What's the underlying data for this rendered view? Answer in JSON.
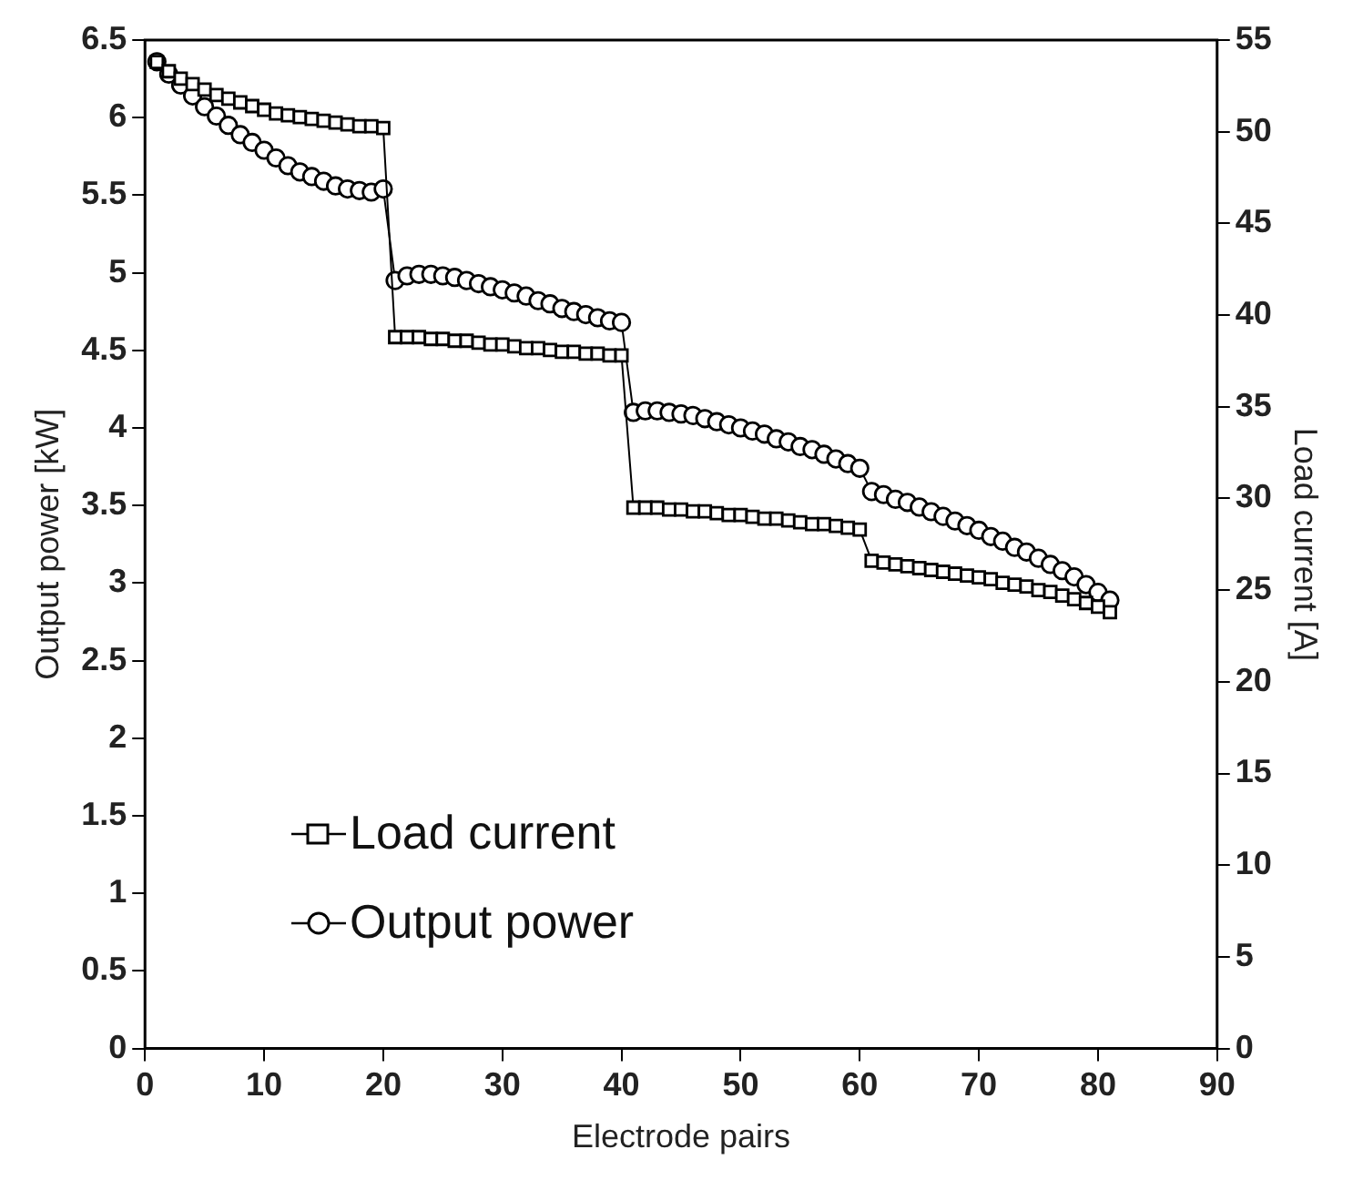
{
  "chart_data": {
    "type": "line",
    "xlabel": "Electrode pairs",
    "ylabel": "Output power [kW]",
    "y2label": "Load current [A]",
    "x": [
      1,
      2,
      3,
      4,
      5,
      6,
      7,
      8,
      9,
      10,
      11,
      12,
      13,
      14,
      15,
      16,
      17,
      18,
      19,
      20,
      21,
      22,
      23,
      24,
      25,
      26,
      27,
      28,
      29,
      30,
      31,
      32,
      33,
      34,
      35,
      36,
      37,
      38,
      39,
      40,
      41,
      42,
      43,
      44,
      45,
      46,
      47,
      48,
      49,
      50,
      51,
      52,
      53,
      54,
      55,
      56,
      57,
      58,
      59,
      60,
      61,
      62,
      63,
      64,
      65,
      66,
      67,
      68,
      69,
      70,
      71,
      72,
      73,
      74,
      75,
      76,
      77,
      78,
      79,
      80,
      81
    ],
    "xlim": [
      0,
      90
    ],
    "xticks": [
      0,
      10,
      20,
      30,
      40,
      50,
      60,
      70,
      80,
      90
    ],
    "ylim": [
      0,
      6.5
    ],
    "yticks": [
      0,
      0.5,
      1,
      1.5,
      2,
      2.5,
      3,
      3.5,
      4,
      4.5,
      5,
      5.5,
      6,
      6.5
    ],
    "y2lim": [
      0,
      55
    ],
    "y2ticks": [
      0,
      5,
      10,
      15,
      20,
      25,
      30,
      35,
      40,
      45,
      50,
      55
    ],
    "grid": false,
    "legend": "bottom left",
    "line_style": "solid",
    "series": [
      {
        "name": "Load current",
        "color": "#000000",
        "marker": "square",
        "axis": "y2",
        "values": [
          53.8,
          53.3,
          52.9,
          52.6,
          52.3,
          52.0,
          51.8,
          51.6,
          51.4,
          51.2,
          51.0,
          50.9,
          50.8,
          50.7,
          50.6,
          50.5,
          50.4,
          50.3,
          50.3,
          50.2,
          38.8,
          38.8,
          38.8,
          38.7,
          38.7,
          38.6,
          38.6,
          38.5,
          38.4,
          38.4,
          38.3,
          38.2,
          38.2,
          38.1,
          38.0,
          38.0,
          37.9,
          37.9,
          37.8,
          37.8,
          29.5,
          29.5,
          29.5,
          29.4,
          29.4,
          29.3,
          29.3,
          29.2,
          29.1,
          29.1,
          29.0,
          28.9,
          28.9,
          28.8,
          28.7,
          28.6,
          28.6,
          28.5,
          28.4,
          28.3,
          26.6,
          26.5,
          26.4,
          26.3,
          26.2,
          26.1,
          26.0,
          25.9,
          25.8,
          25.7,
          25.6,
          25.4,
          25.3,
          25.2,
          25.0,
          24.9,
          24.7,
          24.5,
          24.3,
          24.1,
          23.8
        ]
      },
      {
        "name": "Output power",
        "color": "#000000",
        "marker": "circle",
        "axis": "y",
        "values": [
          6.36,
          6.28,
          6.21,
          6.14,
          6.07,
          6.01,
          5.95,
          5.89,
          5.84,
          5.79,
          5.74,
          5.69,
          5.65,
          5.62,
          5.59,
          5.56,
          5.54,
          5.53,
          5.52,
          5.54,
          4.95,
          4.98,
          4.99,
          4.99,
          4.98,
          4.97,
          4.95,
          4.93,
          4.91,
          4.89,
          4.87,
          4.85,
          4.82,
          4.8,
          4.77,
          4.75,
          4.73,
          4.71,
          4.69,
          4.68,
          4.1,
          4.11,
          4.11,
          4.1,
          4.09,
          4.08,
          4.06,
          4.04,
          4.02,
          4.0,
          3.98,
          3.96,
          3.93,
          3.91,
          3.88,
          3.86,
          3.83,
          3.8,
          3.77,
          3.74,
          3.59,
          3.57,
          3.54,
          3.52,
          3.49,
          3.46,
          3.43,
          3.4,
          3.37,
          3.34,
          3.3,
          3.27,
          3.23,
          3.2,
          3.16,
          3.12,
          3.08,
          3.04,
          2.99,
          2.94,
          2.89
        ]
      }
    ]
  }
}
